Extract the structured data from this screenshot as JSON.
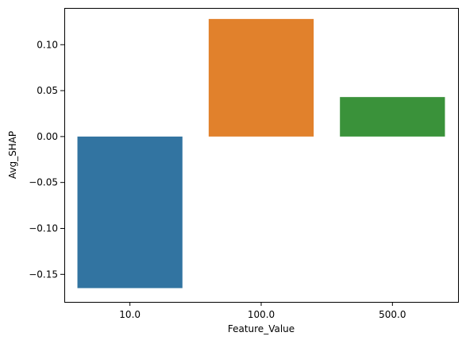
{
  "chart_data": {
    "type": "bar",
    "title": "",
    "xlabel": "Feature_Value",
    "ylabel": "Avg_SHAP",
    "categories": [
      "10.0",
      "100.0",
      "500.0"
    ],
    "values": [
      -0.165,
      0.128,
      0.043
    ],
    "colors": [
      "#3274a1",
      "#e1812c",
      "#3a923a"
    ],
    "ylim": [
      -0.18,
      0.14
    ],
    "yticks": [
      -0.15,
      -0.1,
      -0.05,
      0.0,
      0.05,
      0.1
    ],
    "ytick_labels": [
      "−0.15",
      "−0.10",
      "−0.05",
      "0.00",
      "0.05",
      "0.10"
    ],
    "grid": false,
    "legend": "none"
  }
}
